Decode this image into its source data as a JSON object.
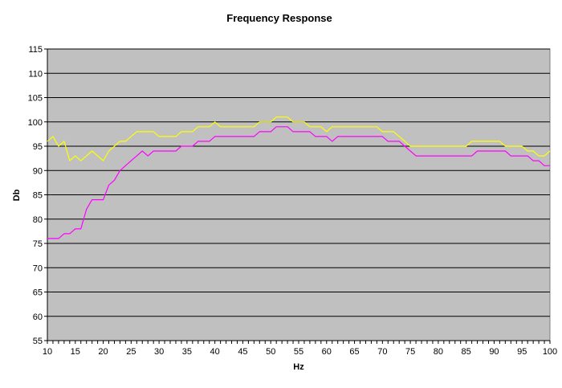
{
  "chart_data": {
    "type": "line",
    "title": "Frequency Response",
    "xlabel": "Hz",
    "ylabel": "Db",
    "xlim": [
      10,
      100
    ],
    "ylim": [
      55,
      115
    ],
    "x_ticks": [
      10,
      15,
      20,
      25,
      30,
      35,
      40,
      45,
      50,
      55,
      60,
      65,
      70,
      75,
      80,
      85,
      90,
      95,
      100
    ],
    "y_ticks": [
      55,
      60,
      65,
      70,
      75,
      80,
      85,
      90,
      95,
      100,
      105,
      110,
      115
    ],
    "grid": true,
    "legend": "none",
    "plot_background": "#c0c0c0",
    "series": [
      {
        "color": "#ffff00",
        "x": [
          10,
          11,
          12,
          13,
          14,
          15,
          16,
          17,
          18,
          19,
          20,
          21,
          22,
          23,
          24,
          25,
          26,
          27,
          28,
          29,
          30,
          31,
          32,
          33,
          34,
          35,
          36,
          37,
          38,
          39,
          40,
          41,
          42,
          43,
          44,
          45,
          46,
          47,
          48,
          49,
          50,
          51,
          52,
          53,
          54,
          55,
          56,
          57,
          58,
          59,
          60,
          61,
          62,
          63,
          64,
          65,
          66,
          67,
          68,
          69,
          70,
          71,
          72,
          73,
          74,
          75,
          76,
          77,
          78,
          79,
          80,
          81,
          82,
          83,
          84,
          85,
          86,
          87,
          88,
          89,
          90,
          91,
          92,
          93,
          94,
          95,
          96,
          97,
          98,
          99,
          100
        ],
        "values": [
          96,
          97,
          95,
          96,
          92,
          93,
          92,
          93,
          94,
          93,
          92,
          94,
          95,
          96,
          96,
          97,
          98,
          98,
          98,
          98,
          97,
          97,
          97,
          97,
          98,
          98,
          98,
          99,
          99,
          99,
          100,
          99,
          99,
          99,
          99,
          99,
          99,
          99,
          100,
          100,
          100,
          101,
          101,
          101,
          100,
          100,
          100,
          99,
          99,
          99,
          98,
          99,
          99,
          99,
          99,
          99,
          99,
          99,
          99,
          99,
          98,
          98,
          98,
          97,
          96,
          95,
          95,
          95,
          95,
          95,
          95,
          95,
          95,
          95,
          95,
          95,
          96,
          96,
          96,
          96,
          96,
          96,
          95,
          95,
          95,
          95,
          94,
          94,
          93,
          93,
          94
        ]
      },
      {
        "color": "#ff00ff",
        "x": [
          10,
          11,
          12,
          13,
          14,
          15,
          16,
          17,
          18,
          19,
          20,
          21,
          22,
          23,
          24,
          25,
          26,
          27,
          28,
          29,
          30,
          31,
          32,
          33,
          34,
          35,
          36,
          37,
          38,
          39,
          40,
          41,
          42,
          43,
          44,
          45,
          46,
          47,
          48,
          49,
          50,
          51,
          52,
          53,
          54,
          55,
          56,
          57,
          58,
          59,
          60,
          61,
          62,
          63,
          64,
          65,
          66,
          67,
          68,
          69,
          70,
          71,
          72,
          73,
          74,
          75,
          76,
          77,
          78,
          79,
          80,
          81,
          82,
          83,
          84,
          85,
          86,
          87,
          88,
          89,
          90,
          91,
          92,
          93,
          94,
          95,
          96,
          97,
          98,
          99,
          100
        ],
        "values": [
          76,
          76,
          76,
          77,
          77,
          78,
          78,
          82,
          84,
          84,
          84,
          87,
          88,
          90,
          91,
          92,
          93,
          94,
          93,
          94,
          94,
          94,
          94,
          94,
          95,
          95,
          95,
          96,
          96,
          96,
          97,
          97,
          97,
          97,
          97,
          97,
          97,
          97,
          98,
          98,
          98,
          99,
          99,
          99,
          98,
          98,
          98,
          98,
          97,
          97,
          97,
          96,
          97,
          97,
          97,
          97,
          97,
          97,
          97,
          97,
          97,
          96,
          96,
          96,
          95,
          94,
          93,
          93,
          93,
          93,
          93,
          93,
          93,
          93,
          93,
          93,
          93,
          94,
          94,
          94,
          94,
          94,
          94,
          93,
          93,
          93,
          93,
          92,
          92,
          91,
          91
        ]
      }
    ]
  }
}
